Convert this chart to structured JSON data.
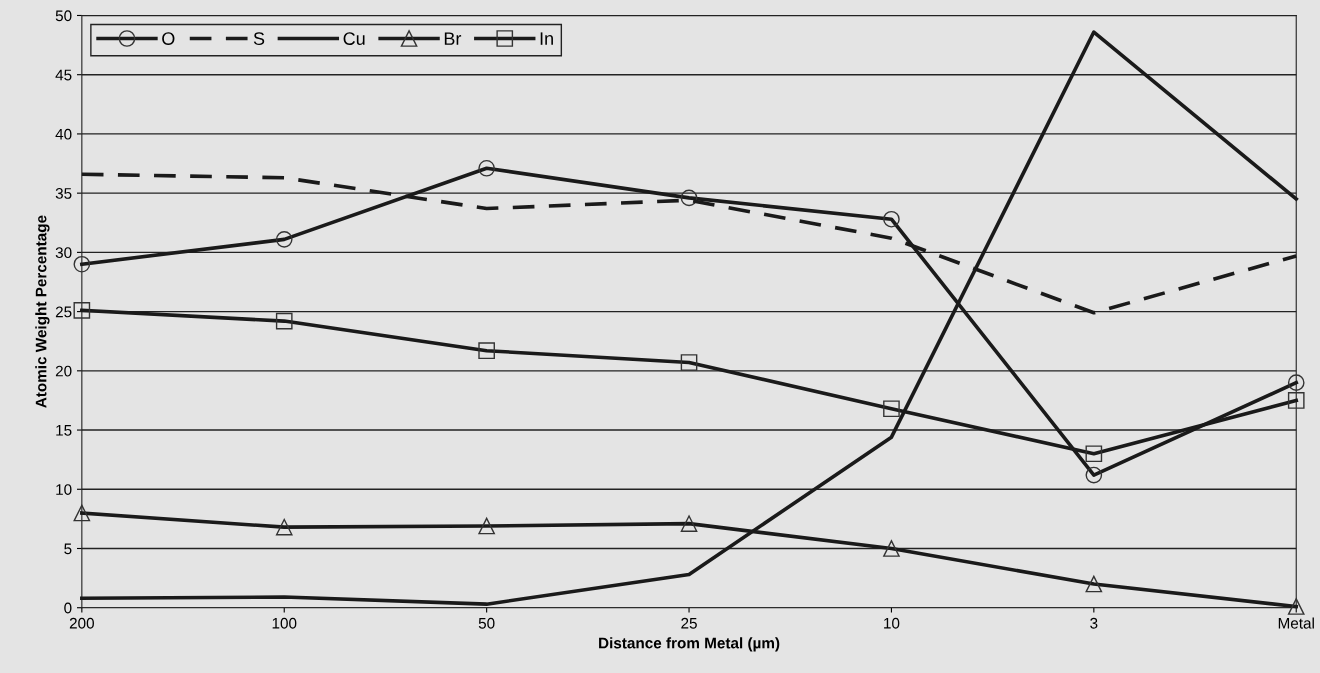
{
  "chart_data": {
    "type": "line",
    "xlabel": "Distance from Metal (µm)",
    "ylabel": "Atomic Weight Percentage",
    "categories": [
      "200",
      "100",
      "50",
      "25",
      "10",
      "3",
      "Metal"
    ],
    "series": [
      {
        "name": "O",
        "color": "#1a1a1a",
        "marker": "circle",
        "line_style": "solid",
        "values": [
          29.0,
          31.1,
          37.1,
          34.6,
          32.8,
          11.2,
          19.0
        ]
      },
      {
        "name": "S",
        "color": "#1a1a1a",
        "marker": "none",
        "line_style": "dashed",
        "values": [
          36.6,
          36.3,
          33.7,
          34.4,
          31.2,
          24.9,
          29.7
        ]
      },
      {
        "name": "Cu",
        "color": "#1a1a1a",
        "marker": "none",
        "line_style": "solid",
        "values": [
          0.8,
          0.9,
          0.3,
          2.8,
          14.4,
          48.6,
          34.5
        ]
      },
      {
        "name": "Br",
        "color": "#1a1a1a",
        "marker": "triangle",
        "line_style": "solid",
        "values": [
          8.0,
          6.8,
          6.9,
          7.1,
          5.0,
          2.0,
          0.1
        ]
      },
      {
        "name": "In",
        "color": "#1a1a1a",
        "marker": "square",
        "line_style": "solid",
        "values": [
          25.1,
          24.2,
          21.7,
          20.7,
          16.8,
          13.0,
          17.5
        ]
      }
    ],
    "ylim": [
      0,
      50
    ],
    "yticks": [
      0,
      5,
      10,
      15,
      20,
      25,
      30,
      35,
      40,
      45,
      50
    ],
    "grid": "y",
    "legend": "top left"
  }
}
